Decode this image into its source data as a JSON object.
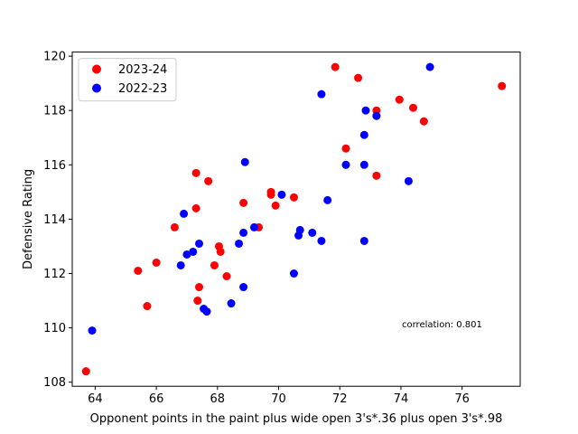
{
  "chart_data": {
    "type": "scatter",
    "xlabel": "Opponent points in the paint plus wide open 3's*.36 plus open 3's*.98",
    "ylabel": "Defensive Rating",
    "xlim": [
      63.25,
      77.9
    ],
    "ylim": [
      107.85,
      120.15
    ],
    "xticks": [
      64,
      66,
      68,
      70,
      72,
      74,
      76
    ],
    "yticks": [
      108,
      110,
      112,
      114,
      116,
      118,
      120
    ],
    "legend_position": "top-left",
    "annotation": "correlation: 0.801",
    "grid": false,
    "series": [
      {
        "name": "2023-24",
        "color": "#ff0000",
        "points": [
          [
            63.7,
            108.4
          ],
          [
            65.4,
            112.1
          ],
          [
            65.7,
            110.8
          ],
          [
            66.0,
            112.4
          ],
          [
            66.6,
            113.7
          ],
          [
            67.3,
            115.7
          ],
          [
            67.3,
            114.4
          ],
          [
            67.35,
            111.0
          ],
          [
            67.4,
            111.5
          ],
          [
            67.7,
            115.4
          ],
          [
            67.9,
            112.3
          ],
          [
            68.05,
            113.0
          ],
          [
            68.1,
            112.8
          ],
          [
            68.3,
            111.9
          ],
          [
            68.85,
            114.6
          ],
          [
            69.35,
            113.7
          ],
          [
            69.75,
            115.0
          ],
          [
            69.75,
            114.9
          ],
          [
            69.9,
            114.5
          ],
          [
            70.5,
            114.8
          ],
          [
            71.85,
            119.6
          ],
          [
            72.2,
            116.6
          ],
          [
            72.6,
            119.2
          ],
          [
            73.2,
            118.0
          ],
          [
            73.2,
            115.6
          ],
          [
            73.95,
            118.4
          ],
          [
            74.4,
            118.1
          ],
          [
            74.75,
            117.6
          ],
          [
            77.3,
            118.9
          ]
        ]
      },
      {
        "name": "2022-23",
        "color": "#0000ff",
        "points": [
          [
            63.9,
            109.9
          ],
          [
            66.8,
            112.3
          ],
          [
            66.9,
            114.2
          ],
          [
            67.0,
            112.7
          ],
          [
            67.2,
            112.8
          ],
          [
            67.4,
            113.1
          ],
          [
            67.55,
            110.7
          ],
          [
            67.65,
            110.6
          ],
          [
            68.45,
            110.9
          ],
          [
            68.7,
            113.1
          ],
          [
            68.85,
            113.5
          ],
          [
            68.85,
            111.5
          ],
          [
            68.9,
            116.1
          ],
          [
            69.2,
            113.7
          ],
          [
            70.1,
            114.9
          ],
          [
            70.5,
            112.0
          ],
          [
            70.65,
            113.4
          ],
          [
            70.7,
            113.6
          ],
          [
            71.1,
            113.5
          ],
          [
            71.4,
            113.2
          ],
          [
            71.4,
            118.6
          ],
          [
            71.6,
            114.7
          ],
          [
            72.2,
            116.0
          ],
          [
            72.8,
            117.1
          ],
          [
            72.8,
            116.0
          ],
          [
            72.8,
            113.2
          ],
          [
            72.85,
            118.0
          ],
          [
            73.2,
            117.8
          ],
          [
            74.25,
            115.4
          ],
          [
            74.95,
            119.6
          ]
        ]
      }
    ]
  }
}
